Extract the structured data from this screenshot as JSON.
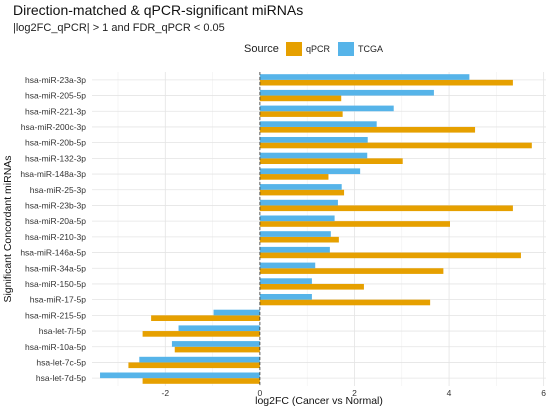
{
  "colors": {
    "qPCR": "#E6A000",
    "TCGA": "#56B4E9"
  },
  "chart_data": {
    "type": "bar",
    "orientation": "horizontal",
    "title": "Direction-matched & qPCR-significant miRNAs",
    "subtitle": "|log2FC_qPCR| > 1 and FDR_qPCR < 0.05",
    "xlabel": "log2FC (Cancer vs Normal)",
    "ylabel": "Significant Concordant miRNAs",
    "legend_title": "Source",
    "legend_position": "top",
    "grid": true,
    "xlim": [
      -3.55,
      6.05
    ],
    "x_ticks": [
      -2,
      0,
      2,
      4,
      6
    ],
    "categories": [
      "hsa-miR-23a-3p",
      "hsa-miR-205-5p",
      "hsa-miR-221-3p",
      "hsa-miR-200c-3p",
      "hsa-miR-20b-5p",
      "hsa-miR-132-3p",
      "hsa-miR-148a-3p",
      "hsa-miR-25-3p",
      "hsa-miR-23b-3p",
      "hsa-miR-20a-5p",
      "hsa-miR-210-3p",
      "hsa-miR-146a-5p",
      "hsa-miR-34a-5p",
      "hsa-miR-150-5p",
      "hsa-miR-17-5p",
      "hsa-miR-215-5p",
      "hsa-let-7i-5p",
      "hsa-miR-10a-5p",
      "hsa-let-7c-5p",
      "hsa-let-7d-5p"
    ],
    "series": [
      {
        "name": "qPCR",
        "values": [
          5.35,
          1.72,
          1.75,
          4.55,
          5.75,
          3.02,
          1.45,
          1.78,
          5.35,
          4.02,
          1.67,
          5.52,
          3.88,
          2.2,
          3.6,
          -2.3,
          -2.48,
          -1.8,
          -2.78,
          -2.48
        ]
      },
      {
        "name": "TCGA",
        "values": [
          4.43,
          3.68,
          2.83,
          2.47,
          2.28,
          2.27,
          2.12,
          1.73,
          1.65,
          1.58,
          1.5,
          1.48,
          1.17,
          1.1,
          1.1,
          -0.98,
          -1.72,
          -1.86,
          -2.55,
          -3.38
        ]
      }
    ]
  }
}
